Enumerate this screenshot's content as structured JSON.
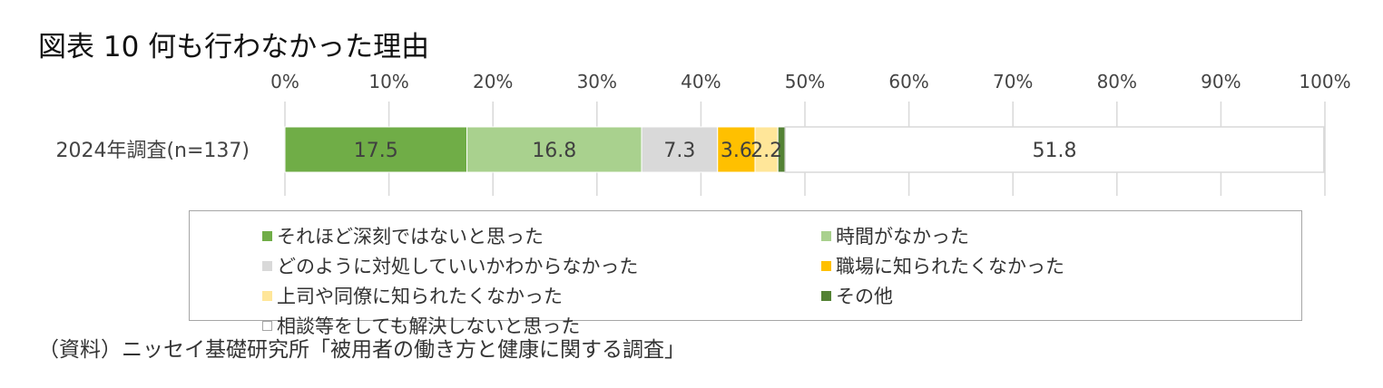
{
  "title": "図表 10 何も行わなかった理由",
  "source_note": "（資料）ニッセイ基礎研究所「被用者の働き方と健康に関する調査」",
  "chart_data": {
    "type": "bar",
    "orientation": "horizontal",
    "stacked": true,
    "title": "図表 10 何も行わなかった理由",
    "categories": [
      "2024年調査(n=137)"
    ],
    "xlim": [
      0,
      100
    ],
    "x_ticks": [
      "0%",
      "10%",
      "20%",
      "30%",
      "40%",
      "50%",
      "60%",
      "70%",
      "80%",
      "90%",
      "100%"
    ],
    "grid": true,
    "legend_position": "bottom",
    "series": [
      {
        "name": "それほど深刻ではないと思った",
        "values": [
          17.5
        ],
        "label": "17.5",
        "color": "#70ad47"
      },
      {
        "name": "時間がなかった",
        "values": [
          16.8
        ],
        "label": "16.8",
        "color": "#a9d18e"
      },
      {
        "name": "どのように対処していいかわからなかった",
        "values": [
          7.3
        ],
        "label": "7.3",
        "color": "#d9d9d9"
      },
      {
        "name": "職場に知られたくなかった",
        "values": [
          3.6
        ],
        "label": "3.6",
        "color": "#ffc000"
      },
      {
        "name": "上司や同僚に知られたくなかった",
        "values": [
          2.2
        ],
        "label": "2.2",
        "color": "#ffe699"
      },
      {
        "name": "その他",
        "values": [
          0.7
        ],
        "label": "",
        "color": "#548235"
      },
      {
        "name": "相談等をしても解決しないと思った",
        "values": [
          51.8
        ],
        "label": "51.8",
        "color": "#ffffff"
      }
    ]
  }
}
